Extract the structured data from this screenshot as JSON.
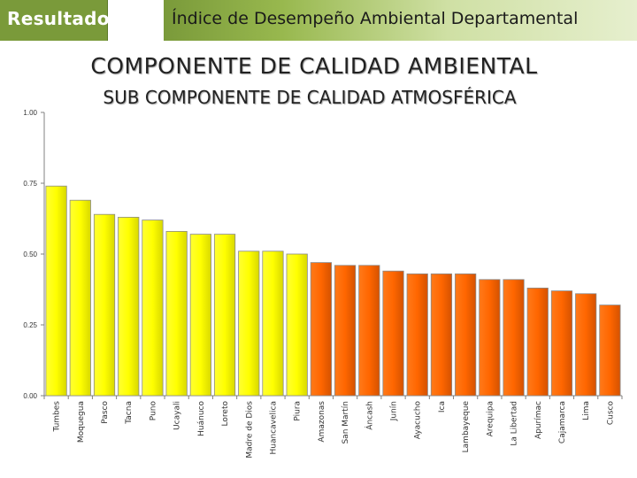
{
  "header": {
    "badge_label": "Resultado",
    "banner_title": "Índice de Desempeño Ambiental Departamental"
  },
  "slide_title": "COMPONENTE DE CALIDAD AMBIENTAL",
  "slide_subtitle": "SUB COMPONENTE DE CALIDAD ATMOSFÉRICA",
  "colors": {
    "top_group_fill": "#ffff00",
    "bottom_group_fill": "#ff6600",
    "badge_green": "#7a9a3a"
  },
  "chart_data": {
    "type": "bar",
    "title": "",
    "xlabel": "",
    "ylabel": "",
    "ylim": [
      0,
      1
    ],
    "yticks": [
      "0.00",
      "0.25",
      "0.50",
      "0.75",
      "1.00"
    ],
    "grid": false,
    "categories": [
      "Tumbes",
      "Moquegua",
      "Pasco",
      "Tacna",
      "Puno",
      "Ucayali",
      "Huánuco",
      "Loreto",
      "Madre de Dios",
      "Huancavelica",
      "Piura",
      "Amazonas",
      "San Martín",
      "Áncash",
      "Junín",
      "Ayacucho",
      "Ica",
      "Lambayeque",
      "Arequipa",
      "La Libertad",
      "Apurímac",
      "Cajamarca",
      "Lima",
      "Cusco"
    ],
    "values": [
      0.74,
      0.69,
      0.64,
      0.63,
      0.62,
      0.58,
      0.57,
      0.57,
      0.51,
      0.51,
      0.5,
      0.47,
      0.46,
      0.46,
      0.44,
      0.43,
      0.43,
      0.43,
      0.41,
      0.41,
      0.38,
      0.37,
      0.36,
      0.32
    ],
    "groups": [
      "top",
      "top",
      "top",
      "top",
      "top",
      "top",
      "top",
      "top",
      "top",
      "top",
      "top",
      "bottom",
      "bottom",
      "bottom",
      "bottom",
      "bottom",
      "bottom",
      "bottom",
      "bottom",
      "bottom",
      "bottom",
      "bottom",
      "bottom",
      "bottom"
    ]
  }
}
